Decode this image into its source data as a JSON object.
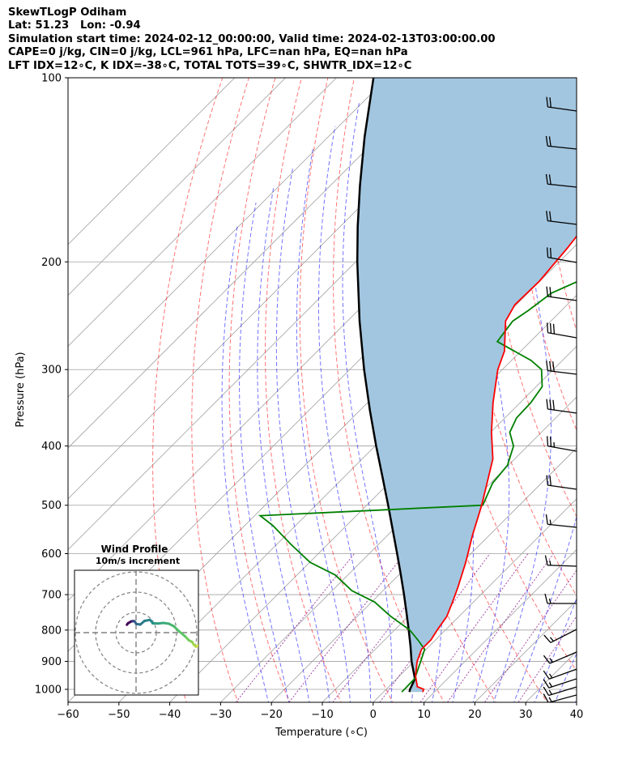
{
  "header": {
    "line1": "SkewTLogP Odiham",
    "line2": "Lat: 51.23   Lon: -0.94",
    "line3": "Simulation start time: 2024-02-12_00:00:00, Valid time: 2024-02-13T03:00:00.00",
    "line4": "CAPE=0 j/kg, CIN=0 j/kg, LCL=961 hPa, LFC=nan hPa, EQ=nan hPa",
    "line5": "LFT IDX=12∘C, K IDX=-38∘C, TOTAL TOTS=39∘C, SHWTR_IDX=12∘C"
  },
  "colors": {
    "temperature": "#ff0000",
    "dewpoint": "#008000",
    "parcel": "#000000",
    "fill": "#a2c6e0",
    "dry_adiabat": "#ff0000",
    "moist_adiabat": "#0000ff",
    "mixing_ratio": "#800080",
    "isotherm": "#a0a0a0",
    "barb": "#000000"
  },
  "chart_data": [
    {
      "type": "line",
      "name": "skew-t",
      "xlabel": "Temperature (∘C)",
      "ylabel": "Pressure (hPa)",
      "xlim": [
        -60,
        40
      ],
      "ylim": [
        1050,
        100
      ],
      "log_y": true,
      "skewed_isotherms": true,
      "grid": true,
      "x_ticks": [
        -60,
        -50,
        -40,
        -30,
        -20,
        -10,
        0,
        10,
        20,
        30,
        40
      ],
      "x_tick_labels": [
        "−60",
        "−50",
        "−40",
        "−30",
        "−20",
        "−10",
        "0",
        "10",
        "20",
        "30",
        "40"
      ],
      "y_ticks": [
        100,
        200,
        300,
        400,
        500,
        600,
        700,
        800,
        900,
        1000
      ],
      "y_tick_labels": [
        "100",
        "200",
        "300",
        "400",
        "500",
        "600",
        "700",
        "800",
        "900",
        "1000"
      ],
      "temperature": {
        "p": [
          1010,
          1000,
          990,
          950,
          900,
          860,
          830,
          800,
          760,
          720,
          680,
          620,
          560,
          500,
          460,
          420,
          380,
          340,
          300,
          280,
          250,
          235,
          215,
          190,
          165,
          140,
          128,
          113,
          100
        ],
        "t": [
          7.7,
          7.4,
          5.6,
          3.1,
          0.6,
          -0.9,
          -0.9,
          -1.6,
          -2.4,
          -4.1,
          -6.0,
          -9.3,
          -13.3,
          -17.4,
          -20.7,
          -24.3,
          -29.8,
          -35.3,
          -40.9,
          -43.2,
          -48.9,
          -50.3,
          -50.1,
          -51.1,
          -52.7,
          -54.9,
          -55.3,
          -57.3,
          -58.3
        ]
      },
      "dewpoint": {
        "p": [
          1010,
          1000,
          960,
          900,
          860,
          830,
          800,
          760,
          720,
          690,
          650,
          620,
          580,
          540,
          520,
          500,
          460,
          430,
          400,
          380,
          360,
          340,
          320,
          300,
          290,
          270,
          250,
          240,
          225,
          210,
          200,
          188,
          180,
          170,
          158,
          145,
          130,
          115,
          100
        ],
        "t": [
          3.6,
          3.6,
          3.5,
          1.3,
          -0.3,
          -3.5,
          -7.0,
          -13.4,
          -19.4,
          -26.1,
          -32.5,
          -39.9,
          -47.1,
          -54.4,
          -58.9,
          -17.2,
          -19.6,
          -20.2,
          -22.8,
          -26.2,
          -27.7,
          -27.9,
          -28.8,
          -32.3,
          -36.1,
          -46.5,
          -47.5,
          -46.5,
          -45.4,
          -40.9,
          -42.2,
          -48.7,
          -51.8,
          -51.6,
          -51.9,
          -52.4,
          -52.3,
          -52.1,
          -51.9
        ]
      },
      "parcel": {
        "p": [
          1010,
          1000,
          961,
          900,
          850,
          800,
          750,
          700,
          650,
          600,
          550,
          500,
          450,
          400,
          350,
          300,
          250,
          200,
          175,
          150,
          125,
          100
        ],
        "t": [
          5.1,
          4.7,
          3.6,
          -0.5,
          -3.7,
          -7.2,
          -11.0,
          -15.1,
          -19.6,
          -24.5,
          -29.9,
          -35.8,
          -42.4,
          -49.8,
          -58.0,
          -67.2,
          -77.6,
          -89.7,
          -96.6,
          -104.2,
          -112.8,
          -122.7
        ]
      },
      "wind_profile": {
        "title": "Wind Profile",
        "subtitle": "10m/s increment",
        "rings_ms": [
          10,
          20,
          30
        ],
        "hodograph": {
          "u": [
            33.8,
            32.2,
            30.6,
            29.6,
            28.5,
            27.7,
            26.1,
            24.2,
            21.2,
            18.6,
            16.2,
            13.5,
            10.9,
            8.2,
            7.9,
            6.9,
            4.2,
            2.1,
            0.1,
            -0.5,
            -1.0,
            -1.5,
            -1.9,
            -2.2,
            -2.4,
            -2.7,
            -3.3,
            -4.0,
            -4.5
          ],
          "v": [
            -7.3,
            -6.1,
            -6.5,
            -6.9,
            -5.9,
            -4.6,
            -3.8,
            -1.8,
            0.7,
            3.2,
            4.4,
            4.8,
            4.5,
            4.6,
            5.2,
            6.3,
            5.8,
            4.0,
            4.3,
            5.3,
            5.7,
            5.7,
            5.6,
            5.6,
            5.5,
            5.4,
            5.0,
            4.6,
            3.9
          ]
        }
      }
    }
  ]
}
